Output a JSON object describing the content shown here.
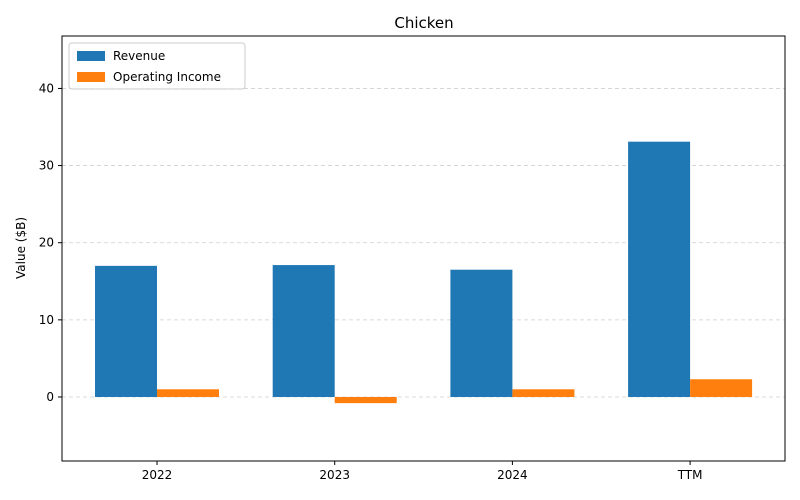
{
  "chart_data": {
    "type": "bar",
    "title": "Chicken",
    "xlabel": "",
    "ylabel": "Value ($B)",
    "categories": [
      "2022",
      "2023",
      "2024",
      "TTM"
    ],
    "series": [
      {
        "name": "Revenue",
        "color": "#1f77b4",
        "values": [
          17.0,
          17.1,
          16.5,
          33.1
        ]
      },
      {
        "name": "Operating Income",
        "color": "#ff7f0e",
        "values": [
          1.0,
          -0.8,
          1.0,
          2.3
        ]
      }
    ],
    "ylim": [
      -8.3,
      46.8
    ],
    "yticks": [
      0,
      10,
      20,
      30,
      40
    ],
    "grid": true,
    "legend_position": "top-left"
  }
}
